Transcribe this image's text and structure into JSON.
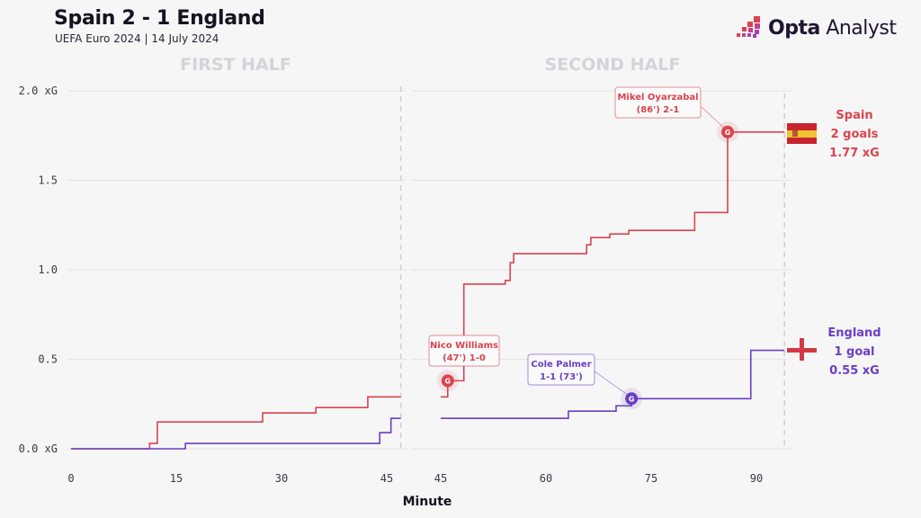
{
  "header": {
    "title": "Spain 2 - 1 England",
    "subtitle": "UEFA Euro 2024 | 14 July 2024",
    "brand_bold": "Opta",
    "brand_light": "Analyst"
  },
  "colors": {
    "spain": "#d9444e",
    "england": "#6a3fc4",
    "grid": "#e3e3e6",
    "half_label": "#d4d4d8"
  },
  "chart_data": {
    "type": "line",
    "title": "Spain 2 - 1 England",
    "subtitle": "UEFA Euro 2024 | 14 July 2024",
    "xlabel": "Minute",
    "ylabel": "",
    "ylim": [
      0,
      2.0
    ],
    "y_ticks": [
      {
        "value": 0.0,
        "label": "0.0 xG"
      },
      {
        "value": 0.5,
        "label": "0.5"
      },
      {
        "value": 1.0,
        "label": "1.0"
      },
      {
        "value": 1.5,
        "label": "1.5"
      },
      {
        "value": 2.0,
        "label": "2.0 xG"
      }
    ],
    "grid": true,
    "step": true,
    "panels": [
      {
        "name": "FIRST HALF",
        "xlim": [
          0,
          47
        ],
        "x_ticks": [
          0,
          15,
          30,
          45
        ],
        "end_minute": 47,
        "series": [
          {
            "name": "Spain",
            "color": "#d9444e",
            "points": [
              [
                0,
                0
              ],
              [
                11.2,
                0.03
              ],
              [
                12.3,
                0.15
              ],
              [
                27.3,
                0.2
              ],
              [
                34.9,
                0.23
              ],
              [
                42.3,
                0.29
              ],
              [
                47,
                0.29
              ]
            ]
          },
          {
            "name": "England",
            "color": "#6a3fc4",
            "points": [
              [
                0,
                0
              ],
              [
                16.3,
                0.03
              ],
              [
                44,
                0.09
              ],
              [
                45.6,
                0.17
              ],
              [
                47,
                0.17
              ]
            ]
          }
        ]
      },
      {
        "name": "SECOND HALF",
        "xlim": [
          45,
          94
        ],
        "x_ticks": [
          45,
          60,
          75,
          90
        ],
        "end_minute": 94,
        "series": [
          {
            "name": "Spain",
            "color": "#d9444e",
            "points": [
              [
                45,
                0.29
              ],
              [
                46,
                0.38
              ],
              [
                48.3,
                0.92
              ],
              [
                54.2,
                0.94
              ],
              [
                54.9,
                1.04
              ],
              [
                55.4,
                1.09
              ],
              [
                65.8,
                1.14
              ],
              [
                66.4,
                1.18
              ],
              [
                69.1,
                1.2
              ],
              [
                71.8,
                1.22
              ],
              [
                81.2,
                1.32
              ],
              [
                85.9,
                1.77
              ],
              [
                94,
                1.77
              ]
            ]
          },
          {
            "name": "England",
            "color": "#6a3fc4",
            "points": [
              [
                45,
                0.17
              ],
              [
                63.2,
                0.21
              ],
              [
                70,
                0.24
              ],
              [
                72.2,
                0.28
              ],
              [
                89.2,
                0.55
              ],
              [
                94,
                0.55
              ]
            ]
          }
        ]
      }
    ],
    "goals": [
      {
        "team": "Spain",
        "minute": 46,
        "xg": 0.38,
        "marker": "G",
        "label_line1": "Nico Williams",
        "label_line2": "(47') 1-0"
      },
      {
        "team": "England",
        "minute": 72.2,
        "xg": 0.28,
        "marker": "G",
        "label_line1": "Cole Palmer",
        "label_line2": "1-1 (73')"
      },
      {
        "team": "Spain",
        "minute": 85.9,
        "xg": 1.77,
        "marker": "G",
        "label_line1": "Mikel Oyarzabal",
        "label_line2": "(86') 2-1"
      }
    ],
    "teams": [
      {
        "name": "Spain",
        "goals_text": "2 goals",
        "xg_text": "1.77 xG",
        "final_xg": 1.77,
        "flag": "spain-flag"
      },
      {
        "name": "England",
        "goals_text": "1 goal",
        "xg_text": "0.55 xG",
        "final_xg": 0.55,
        "flag": "england-flag"
      }
    ]
  }
}
